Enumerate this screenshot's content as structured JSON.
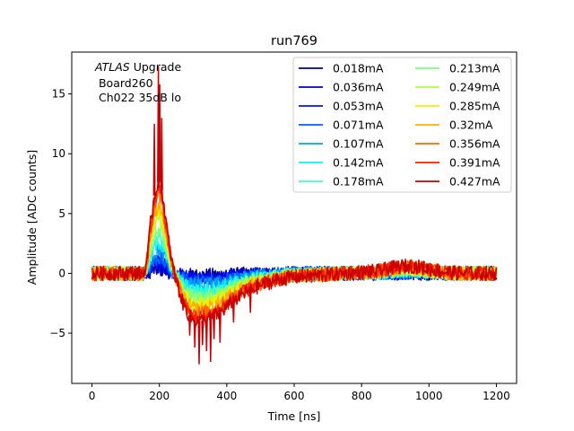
{
  "chart_data": {
    "type": "line",
    "title": "run769",
    "xlabel": "Time [ns]",
    "ylabel": "Amplitude [ADC counts]",
    "xlim": [
      -60,
      1260
    ],
    "ylim": [
      -9.2,
      18.5
    ],
    "xticks": [
      0,
      200,
      400,
      600,
      800,
      1000,
      1200
    ],
    "xtick_labels": [
      "0",
      "200",
      "400",
      "600",
      "800",
      "1000",
      "1200"
    ],
    "yticks": [
      -5,
      0,
      5,
      10,
      15
    ],
    "ytick_labels": [
      "−5",
      "0",
      "5",
      "10",
      "15"
    ],
    "grid": false,
    "legend_position": "top-right",
    "legend_columns": 2,
    "annotation": {
      "italic": "ATLAS",
      "text": " Upgrade",
      "line2": " Board260",
      "line3": " Ch022 35dB lo"
    },
    "series": [
      {
        "name": "0.018mA",
        "color": "#00008f",
        "scale": 0.042
      },
      {
        "name": "0.036mA",
        "color": "#0000d7",
        "scale": 0.084
      },
      {
        "name": "0.053mA",
        "color": "#0010ff",
        "scale": 0.124
      },
      {
        "name": "0.071mA",
        "color": "#0060ff",
        "scale": 0.166
      },
      {
        "name": "0.107mA",
        "color": "#00a0ff",
        "scale": 0.251
      },
      {
        "name": "0.142mA",
        "color": "#10f0f0",
        "scale": 0.333
      },
      {
        "name": "0.178mA",
        "color": "#40ffc0",
        "scale": 0.417
      },
      {
        "name": "0.213mA",
        "color": "#80ff80",
        "scale": 0.499
      },
      {
        "name": "0.249mA",
        "color": "#b0ff40",
        "scale": 0.583
      },
      {
        "name": "0.285mA",
        "color": "#f0f000",
        "scale": 0.667
      },
      {
        "name": "0.32mA",
        "color": "#ffb000",
        "scale": 0.749
      },
      {
        "name": "0.356mA",
        "color": "#ff6800",
        "scale": 0.834
      },
      {
        "name": "0.391mA",
        "color": "#ff2000",
        "scale": 0.916
      },
      {
        "name": "0.427mA",
        "color": "#c80000",
        "scale": 1.0
      }
    ],
    "reference_shape": {
      "x": [
        0,
        155,
        165,
        175,
        185,
        195,
        200,
        205,
        210,
        220,
        230,
        240,
        250,
        260,
        270,
        280,
        290,
        300,
        320,
        340,
        360,
        380,
        400,
        420,
        450,
        500,
        550,
        600,
        650,
        700,
        750,
        800,
        850,
        880,
        920,
        960,
        1000,
        1050,
        1100,
        1150,
        1200
      ],
      "y": [
        0,
        0,
        1.5,
        4.5,
        6.5,
        7.5,
        7.8,
        7.3,
        6.5,
        4.3,
        2.2,
        0.6,
        -0.6,
        -1.6,
        -2.5,
        -3.1,
        -3.6,
        -3.9,
        -4.0,
        -3.9,
        -3.6,
        -3.3,
        -2.8,
        -2.3,
        -1.7,
        -1.0,
        -0.55,
        -0.3,
        -0.2,
        -0.1,
        0.0,
        0.1,
        0.2,
        0.4,
        0.6,
        0.6,
        0.35,
        0.1,
        0.0,
        0.0,
        0.0
      ]
    },
    "spikes": [
      {
        "x": 185,
        "y": 12.5
      },
      {
        "x": 197,
        "y": 17.3
      },
      {
        "x": 201,
        "y": 15.8
      },
      {
        "x": 207,
        "y": 13.0
      },
      {
        "x": 290,
        "y": -5.2
      },
      {
        "x": 305,
        "y": -6.2
      },
      {
        "x": 318,
        "y": -7.6
      },
      {
        "x": 328,
        "y": -6.0
      },
      {
        "x": 340,
        "y": -6.5
      },
      {
        "x": 352,
        "y": -7.4
      },
      {
        "x": 362,
        "y": -5.5
      },
      {
        "x": 380,
        "y": -5.8
      },
      {
        "x": 420,
        "y": -4.1
      },
      {
        "x": 470,
        "y": -3.3
      }
    ]
  }
}
